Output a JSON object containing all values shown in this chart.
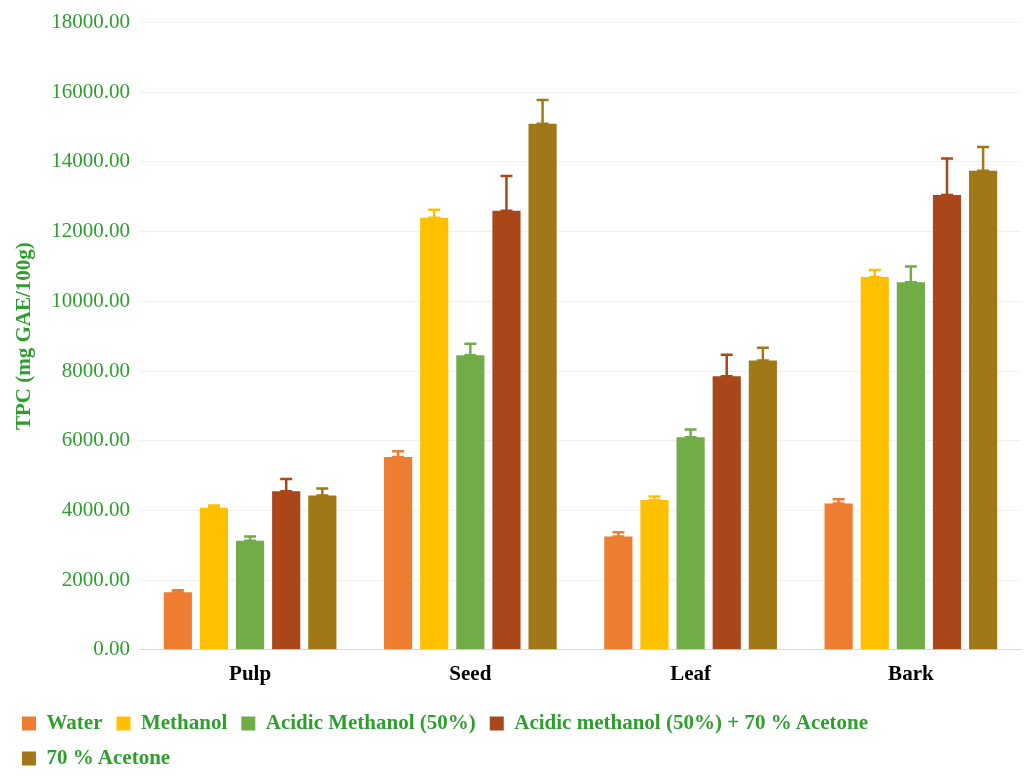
{
  "chart_data": {
    "type": "bar",
    "ylabel": "TPC (mg GAE/100g)",
    "categories": [
      "Pulp",
      "Seed",
      "Leaf",
      "Bark"
    ],
    "series": [
      {
        "name": "Water",
        "color": "#ed7d31",
        "values": [
          1650,
          5530,
          3250,
          4200
        ],
        "errors": [
          60,
          170,
          120,
          120
        ]
      },
      {
        "name": "Methanol",
        "color": "#ffc000",
        "values": [
          4080,
          12400,
          4300,
          10700
        ],
        "errors": [
          60,
          230,
          100,
          200
        ]
      },
      {
        "name": "Acidic Methanol (50%)",
        "color": "#70ad47",
        "values": [
          3130,
          8450,
          6100,
          10550
        ],
        "errors": [
          120,
          330,
          220,
          450
        ]
      },
      {
        "name": "Acidic methanol (50%) + 70 % Acetone",
        "color": "#a9471b",
        "values": [
          4550,
          12600,
          7850,
          13050
        ],
        "errors": [
          350,
          1000,
          620,
          1050
        ]
      },
      {
        "name": "70 % Acetone",
        "color": "#a07818",
        "values": [
          4430,
          15100,
          8300,
          13750
        ],
        "errors": [
          200,
          680,
          370,
          680
        ]
      }
    ],
    "ylim": [
      0,
      18000
    ],
    "yticks": [
      {
        "value": 0,
        "label": "0.00"
      },
      {
        "value": 2000,
        "label": "2000.00"
      },
      {
        "value": 4000,
        "label": "4000.00"
      },
      {
        "value": 6000,
        "label": "6000.00"
      },
      {
        "value": 8000,
        "label": "8000.00"
      },
      {
        "value": 10000,
        "label": "10000.00"
      },
      {
        "value": 12000,
        "label": "12000.00"
      },
      {
        "value": 14000,
        "label": "14000.00"
      },
      {
        "value": 16000,
        "label": "16000.00"
      },
      {
        "value": 18000,
        "label": "18000.00"
      }
    ],
    "grid": "y",
    "legend": "bottom"
  }
}
